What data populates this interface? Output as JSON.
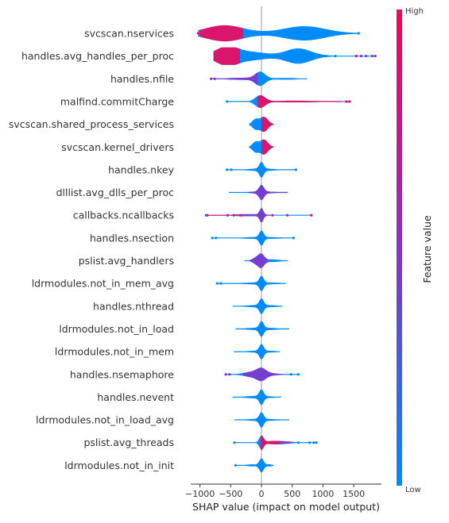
{
  "chart_data": {
    "type": "violin",
    "xlabel": "SHAP value (impact on model output)",
    "xlim": [
      -1150,
      1950
    ],
    "xticks": [
      -1000,
      -500,
      0,
      500,
      1000,
      1500
    ],
    "xtick_labels": [
      "−1000",
      "−500",
      "0",
      "500",
      "1000",
      "1500"
    ],
    "colorbar": {
      "title": "Feature value",
      "high_label": "High",
      "low_label": "Low",
      "high_color": "#ff0052",
      "mid_color": "#8a30c8",
      "low_color": "#008bfb"
    },
    "features": [
      {
        "name": "svcscan.nservices",
        "min": -1030,
        "max": 1580,
        "blobs": [
          [
            -600,
            300,
            0.85
          ],
          [
            700,
            330,
            0.75
          ],
          [
            0,
            1200,
            0.08
          ]
        ],
        "red_range": [
          -1000,
          -300
        ],
        "dots": [
          [
            -1030,
            "high"
          ],
          [
            1580,
            "low"
          ]
        ]
      },
      {
        "name": "handles.avg_handles_per_proc",
        "min": -780,
        "max": 1850,
        "blobs": [
          [
            -560,
            180,
            1.0
          ],
          [
            -150,
            220,
            0.35
          ],
          [
            600,
            200,
            0.8
          ],
          [
            0,
            900,
            0.1
          ]
        ],
        "red_range": [
          -780,
          -350
        ],
        "dots": [
          [
            1540,
            "high"
          ],
          [
            1620,
            "mid"
          ],
          [
            1700,
            "mid"
          ],
          [
            1800,
            "mid"
          ],
          [
            1850,
            "mid"
          ],
          [
            1200,
            "low"
          ],
          [
            1050,
            "low"
          ]
        ]
      },
      {
        "name": "handles.nfile",
        "min": -820,
        "max": 740,
        "blobs": [
          [
            -20,
            80,
            0.75
          ],
          [
            -300,
            250,
            0.12
          ],
          [
            400,
            180,
            0.1
          ]
        ],
        "purple_range": [
          -820,
          -60
        ],
        "dots": [
          [
            -820,
            "mid"
          ],
          [
            -760,
            "mid"
          ]
        ]
      },
      {
        "name": "malfind.commitCharge",
        "min": -560,
        "max": 1430,
        "blobs": [
          [
            -20,
            80,
            0.7
          ],
          [
            550,
            350,
            0.1
          ]
        ],
        "red_range": [
          -60,
          1300
        ],
        "dots": [
          [
            1380,
            "high"
          ],
          [
            1430,
            "high"
          ],
          [
            -560,
            "low"
          ]
        ]
      },
      {
        "name": "svcscan.shared_process_services",
        "min": -200,
        "max": 200,
        "blobs": [
          [
            40,
            65,
            0.85
          ],
          [
            -100,
            50,
            0.55
          ]
        ],
        "red_range": [
          0,
          200
        ]
      },
      {
        "name": "svcscan.kernel_drivers",
        "min": -200,
        "max": 200,
        "blobs": [
          [
            40,
            65,
            0.85
          ],
          [
            -100,
            50,
            0.55
          ]
        ],
        "red_range": [
          0,
          200
        ]
      },
      {
        "name": "handles.nkey",
        "min": -560,
        "max": 560,
        "blobs": [
          [
            0,
            35,
            0.75
          ],
          [
            0,
            200,
            0.15
          ]
        ],
        "dots": [
          [
            -560,
            "low"
          ],
          [
            -490,
            "low"
          ],
          [
            560,
            "low"
          ]
        ]
      },
      {
        "name": "dlllist.avg_dlls_per_proc",
        "min": -530,
        "max": 430,
        "blobs": [
          [
            0,
            40,
            0.75
          ],
          [
            0,
            220,
            0.12
          ]
        ],
        "purple_range": [
          -200,
          430
        ]
      },
      {
        "name": "callbacks.ncallbacks",
        "min": -900,
        "max": 810,
        "blobs": [
          [
            0,
            30,
            0.75
          ],
          [
            -200,
            250,
            0.12
          ]
        ],
        "red_range": [
          -900,
          -600
        ],
        "purple_range": [
          -600,
          200
        ],
        "dots": [
          [
            -900,
            "mid"
          ],
          [
            -880,
            "mid"
          ],
          [
            -550,
            "high"
          ],
          [
            -450,
            "high"
          ],
          [
            -350,
            "mid"
          ],
          [
            -320,
            "high"
          ],
          [
            180,
            "mid"
          ],
          [
            420,
            "mid"
          ],
          [
            810,
            "high"
          ]
        ]
      },
      {
        "name": "handles.nsection",
        "min": -800,
        "max": 520,
        "blobs": [
          [
            0,
            35,
            0.75
          ],
          [
            0,
            280,
            0.12
          ]
        ],
        "dots": [
          [
            -800,
            "low"
          ],
          [
            -740,
            "low"
          ],
          [
            520,
            "low"
          ]
        ]
      },
      {
        "name": "pslist.avg_handlers",
        "min": -280,
        "max": 430,
        "blobs": [
          [
            0,
            45,
            0.6
          ],
          [
            -80,
            60,
            0.35
          ],
          [
            150,
            150,
            0.15
          ]
        ],
        "purple_range": [
          -200,
          100
        ]
      },
      {
        "name": "ldrmodules.not_in_mem_avg",
        "min": -720,
        "max": 400,
        "blobs": [
          [
            0,
            35,
            0.75
          ],
          [
            0,
            260,
            0.13
          ]
        ],
        "dots": [
          [
            -720,
            "low"
          ],
          [
            -660,
            "low"
          ]
        ]
      },
      {
        "name": "handles.nthread",
        "min": -470,
        "max": 340,
        "blobs": [
          [
            0,
            35,
            0.75
          ],
          [
            0,
            220,
            0.15
          ]
        ]
      },
      {
        "name": "ldrmodules.not_in_load",
        "min": -420,
        "max": 450,
        "blobs": [
          [
            0,
            35,
            0.75
          ],
          [
            0,
            230,
            0.15
          ]
        ]
      },
      {
        "name": "ldrmodules.not_in_mem",
        "min": -450,
        "max": 300,
        "blobs": [
          [
            0,
            35,
            0.75
          ],
          [
            0,
            200,
            0.13
          ]
        ]
      },
      {
        "name": "handles.nsemaphore",
        "min": -580,
        "max": 600,
        "blobs": [
          [
            0,
            70,
            0.45
          ],
          [
            -100,
            150,
            0.25
          ],
          [
            0,
            250,
            0.12
          ]
        ],
        "purple_range": [
          -300,
          350
        ],
        "dots": [
          [
            -580,
            "mid"
          ],
          [
            -520,
            "mid"
          ],
          [
            480,
            "low"
          ],
          [
            600,
            "low"
          ]
        ]
      },
      {
        "name": "handles.nevent",
        "min": -470,
        "max": 320,
        "blobs": [
          [
            0,
            35,
            0.75
          ],
          [
            -50,
            200,
            0.15
          ]
        ]
      },
      {
        "name": "ldrmodules.not_in_load_avg",
        "min": -440,
        "max": 450,
        "blobs": [
          [
            0,
            35,
            0.75
          ],
          [
            0,
            220,
            0.13
          ]
        ]
      },
      {
        "name": "pslist.avg_threads",
        "min": -440,
        "max": 890,
        "blobs": [
          [
            0,
            35,
            0.75
          ],
          [
            200,
            150,
            0.15
          ],
          [
            400,
            200,
            0.08
          ]
        ],
        "red_range": [
          -10,
          300
        ],
        "purple_range": [
          300,
          500
        ],
        "dots": [
          [
            -440,
            "low"
          ],
          [
            600,
            "low"
          ],
          [
            780,
            "low"
          ],
          [
            850,
            "low"
          ],
          [
            890,
            "low"
          ]
        ]
      },
      {
        "name": "ldrmodules.not_in_init",
        "min": -420,
        "max": 200,
        "blobs": [
          [
            0,
            35,
            0.75
          ],
          [
            -150,
            100,
            0.12
          ],
          [
            120,
            60,
            0.12
          ]
        ],
        "dots": [
          [
            -420,
            "low"
          ]
        ]
      }
    ]
  }
}
